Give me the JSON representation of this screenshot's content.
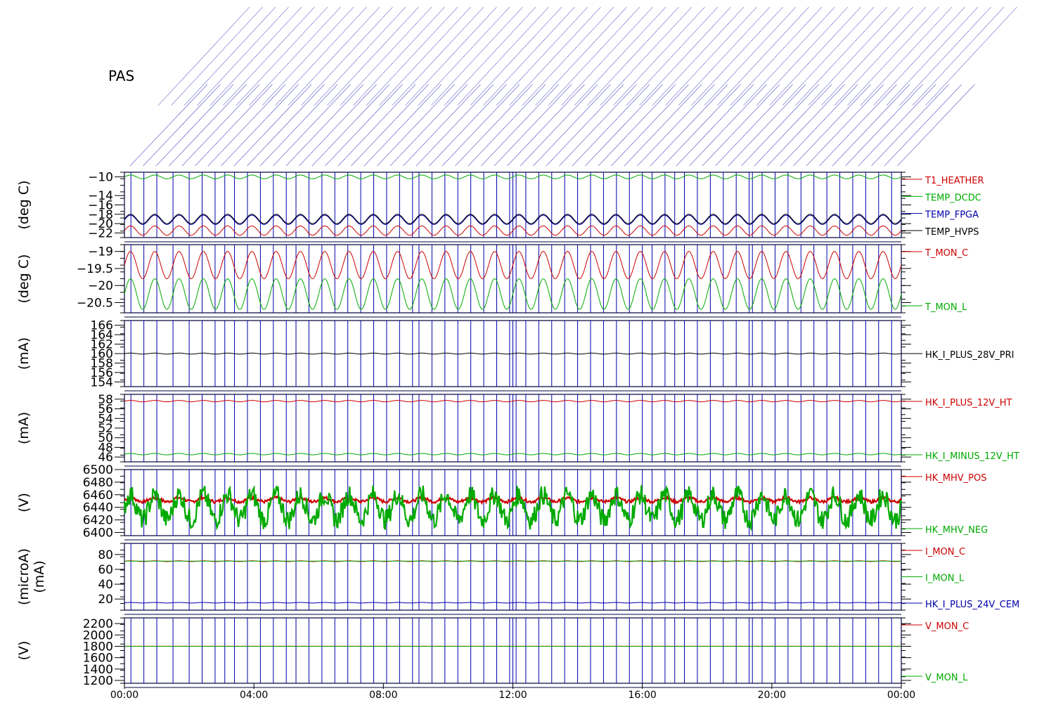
{
  "page_title": "PAS",
  "colors": {
    "red": "#cc0000",
    "green": "#00aa00",
    "blue": "#0000aa",
    "black": "#000000",
    "frame": "#00003c"
  },
  "chart_data": {
    "type": "line",
    "grid": true,
    "x_tick_labels": [
      "00:00",
      "04:00",
      "08:00",
      "12:00",
      "16:00",
      "20:00",
      "00:00"
    ],
    "x_range_hours": [
      0,
      24
    ],
    "event_lines_hours": [
      0.2,
      0.6,
      1.0,
      1.5,
      2.0,
      2.4,
      2.8,
      3.1,
      3.4,
      3.8,
      4.2,
      4.6,
      5.0,
      5.3,
      5.7,
      6.1,
      6.5,
      6.9,
      7.3,
      7.7,
      8.1,
      8.5,
      8.9,
      9.1,
      9.5,
      9.9,
      10.3,
      10.7,
      11.1,
      11.5,
      11.9,
      12.0,
      12.1,
      12.4,
      12.8,
      13.2,
      13.6,
      14.0,
      14.4,
      14.8,
      15.2,
      15.6,
      16.0,
      16.3,
      16.7,
      17.0,
      17.3,
      17.7,
      18.1,
      18.5,
      18.9,
      19.3,
      19.4,
      19.7,
      20.1,
      20.5,
      20.9,
      21.3,
      21.7,
      22.1,
      22.5,
      22.9,
      23.3,
      23.7
    ],
    "panels": [
      {
        "ylabel": "(deg C)",
        "y_range": [
          -23,
          -9
        ],
        "y_ticks": [
          -10,
          -14,
          -16,
          -18,
          -20,
          -22
        ],
        "series": [
          {
            "name": "T1_HEATHER",
            "color": "#cc0000",
            "mean": -21.5,
            "amp": 1.0,
            "period_h": 0.75
          },
          {
            "name": "TEMP_DCDC",
            "color": "#00aa00",
            "mean": -10.0,
            "amp": 0.4,
            "period_h": 0.75
          },
          {
            "name": "TEMP_FPGA",
            "color": "#0000aa",
            "mean": -19.2,
            "amp": 1.0,
            "period_h": 0.75
          },
          {
            "name": "TEMP_HVPS",
            "color": "#000000",
            "mean": -19.0,
            "amp": 1.0,
            "period_h": 0.75
          }
        ]
      },
      {
        "ylabel": "(deg C)",
        "y_range": [
          -20.8,
          -18.8
        ],
        "y_ticks": [
          -19.0,
          -19.5,
          -20.0,
          -20.5
        ],
        "series": [
          {
            "name": "T_MON_C",
            "color": "#cc0000",
            "mean": -19.4,
            "amp": 0.4,
            "period_h": 0.75
          },
          {
            "name": "T_MON_L",
            "color": "#00aa00",
            "mean": -20.25,
            "amp": 0.45,
            "period_h": 0.75
          }
        ]
      },
      {
        "ylabel": "(mA)",
        "y_range": [
          153,
          167
        ],
        "y_ticks": [
          154,
          156,
          158,
          160,
          162,
          164,
          166
        ],
        "series": [
          {
            "name": "HK_I_PLUS_28V_PRI",
            "color": "#000000",
            "mean": 160,
            "amp": 0.1,
            "period_h": 0.75
          }
        ]
      },
      {
        "ylabel": "(mA)",
        "y_range": [
          45,
          59
        ],
        "y_ticks": [
          46,
          48,
          50,
          52,
          54,
          56,
          58
        ],
        "series": [
          {
            "name": "HK_I_PLUS_12V_HT",
            "color": "#cc0000",
            "mean": 57.6,
            "amp": 0.15,
            "period_h": 0.75
          },
          {
            "name": "HK_I_MINUS_12V_HT",
            "color": "#00aa00",
            "mean": 46.6,
            "amp": 0.15,
            "period_h": 0.75
          }
        ]
      },
      {
        "ylabel": "(V)",
        "y_range": [
          6395,
          6500
        ],
        "y_ticks": [
          6400,
          6420,
          6440,
          6460,
          6480,
          6500
        ],
        "series": [
          {
            "name": "HK_MHV_POS",
            "color": "#cc0000",
            "mean": 6452,
            "amp": 3,
            "period_h": 0.75
          },
          {
            "name": "HK_MHV_NEG",
            "color": "#00aa00",
            "mean": 6440,
            "amp": 20,
            "period_h": 0.75
          }
        ]
      },
      {
        "ylabel": "(microA)",
        "ylabel2": "(mA)",
        "y_range": [
          5,
          95
        ],
        "y_ticks": [
          20,
          40,
          60,
          80
        ],
        "series": [
          {
            "name": "I_MON_C",
            "color": "#cc0000",
            "mean": 71,
            "amp": 0.5,
            "period_h": 0.75
          },
          {
            "name": "I_MON_L",
            "color": "#00aa00",
            "mean": 71,
            "amp": 0.0,
            "period_h": 0.75
          },
          {
            "name": "HK_I_PLUS_24V_CEM",
            "color": "#0000aa",
            "mean": 15,
            "amp": 0.4,
            "period_h": 0.75
          }
        ]
      },
      {
        "ylabel": "(V)",
        "y_range": [
          1150,
          2300
        ],
        "y_ticks": [
          1200,
          1400,
          1600,
          1800,
          2000,
          2200
        ],
        "series": [
          {
            "name": "V_MON_C",
            "color": "#cc0000",
            "mean": 1800,
            "amp": 0.0,
            "period_h": 0.75
          },
          {
            "name": "V_MON_L",
            "color": "#00aa00",
            "mean": 1800,
            "amp": 0.0,
            "period_h": 0.75
          }
        ]
      }
    ]
  }
}
